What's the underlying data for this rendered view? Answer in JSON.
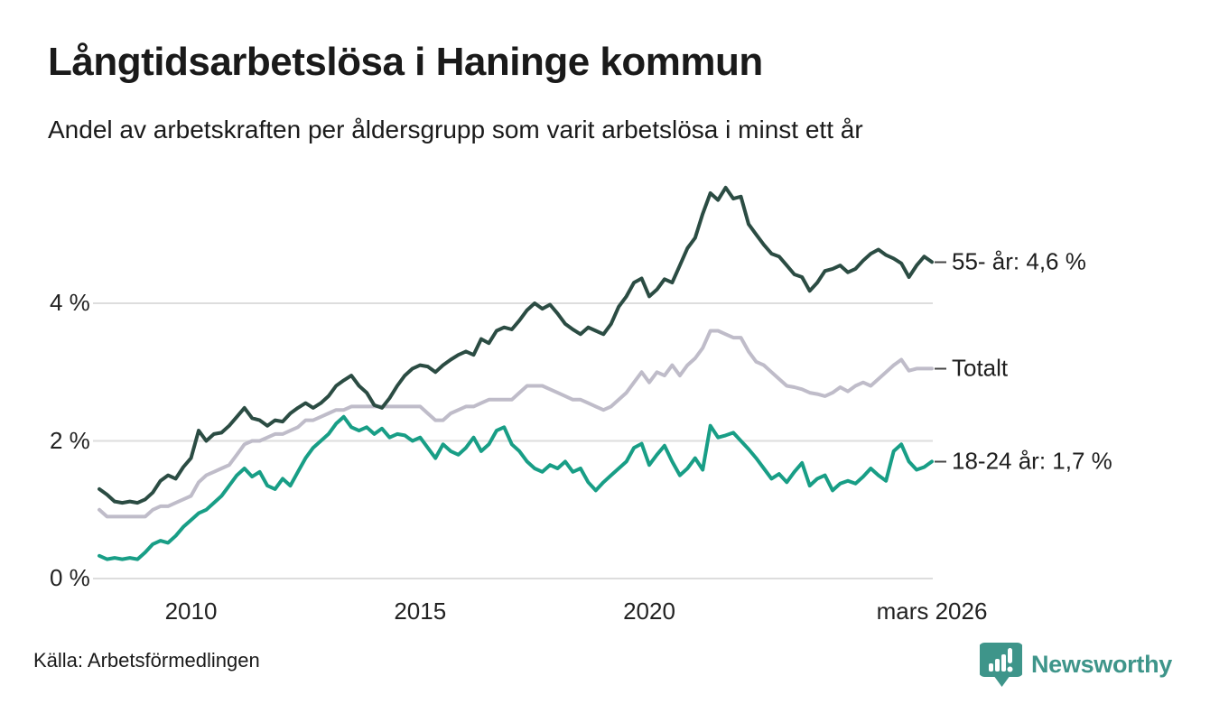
{
  "header": {
    "title": "Långtidsarbetslösa i Haninge kommun",
    "subtitle": "Andel av arbetskraften per åldersgrupp som varit arbetslösa i minst ett år"
  },
  "footer": {
    "source": "Källa: Arbetsförmedlingen",
    "brand_name": "Newsworthy",
    "brand_color": "#3e958a",
    "brand_icon": "bar-chart-speech-bubble-icon"
  },
  "colors": {
    "grid": "#dddddd",
    "tick_text": "#222222",
    "label_dash": "#454545"
  },
  "chart_data": {
    "type": "line",
    "title": "Långtidsarbetslösa i Haninge kommun",
    "subtitle": "Andel av arbetskraften per åldersgrupp som varit arbetslösa i minst ett år",
    "unit": "%",
    "grid": "horizontal",
    "legend_position": "right-end-labels",
    "x_start_year": 2008.0,
    "x_step_months": 2,
    "x_end": "mars 2026",
    "ylim": [
      0,
      5.9
    ],
    "yticks": [
      {
        "value": 0,
        "label": "0 %"
      },
      {
        "value": 2,
        "label": "2 %"
      },
      {
        "value": 4,
        "label": "4 %"
      }
    ],
    "xticks": [
      {
        "value": 2010,
        "label": "2010"
      },
      {
        "value": 2015,
        "label": "2015"
      },
      {
        "value": 2020,
        "label": "2020"
      },
      {
        "value": 2026.167,
        "label": "mars 2026"
      }
    ],
    "series": [
      {
        "name": "Totalt",
        "end_label": "Totalt",
        "end_value": 3.05,
        "color": "#bfbcc9",
        "values": [
          1.0,
          0.9,
          0.9,
          0.9,
          0.9,
          0.9,
          0.9,
          1.0,
          1.05,
          1.05,
          1.1,
          1.15,
          1.2,
          1.4,
          1.5,
          1.55,
          1.6,
          1.65,
          1.8,
          1.95,
          2.0,
          2.0,
          2.05,
          2.1,
          2.1,
          2.15,
          2.2,
          2.3,
          2.3,
          2.35,
          2.4,
          2.45,
          2.45,
          2.5,
          2.5,
          2.5,
          2.5,
          2.5,
          2.5,
          2.5,
          2.5,
          2.5,
          2.5,
          2.4,
          2.3,
          2.3,
          2.4,
          2.45,
          2.5,
          2.5,
          2.55,
          2.6,
          2.6,
          2.6,
          2.6,
          2.7,
          2.8,
          2.8,
          2.8,
          2.75,
          2.7,
          2.65,
          2.6,
          2.6,
          2.55,
          2.5,
          2.45,
          2.5,
          2.6,
          2.7,
          2.85,
          3.0,
          2.85,
          3.0,
          2.95,
          3.1,
          2.95,
          3.1,
          3.2,
          3.35,
          3.6,
          3.6,
          3.55,
          3.5,
          3.5,
          3.3,
          3.15,
          3.1,
          3.0,
          2.9,
          2.8,
          2.78,
          2.75,
          2.7,
          2.68,
          2.65,
          2.7,
          2.78,
          2.72,
          2.8,
          2.85,
          2.8,
          2.9,
          3.0,
          3.1,
          3.18,
          3.02,
          3.05,
          3.05,
          3.05
        ]
      },
      {
        "name": "55- år",
        "end_label": "55- år: 4,6 %",
        "end_value": 4.6,
        "color": "#2b4c43",
        "values": [
          1.3,
          1.22,
          1.12,
          1.1,
          1.12,
          1.1,
          1.15,
          1.25,
          1.42,
          1.5,
          1.45,
          1.62,
          1.75,
          2.15,
          2.0,
          2.1,
          2.12,
          2.22,
          2.35,
          2.48,
          2.33,
          2.3,
          2.22,
          2.3,
          2.28,
          2.4,
          2.48,
          2.55,
          2.48,
          2.55,
          2.65,
          2.8,
          2.88,
          2.95,
          2.8,
          2.7,
          2.52,
          2.48,
          2.62,
          2.8,
          2.95,
          3.05,
          3.1,
          3.08,
          3.0,
          3.1,
          3.18,
          3.25,
          3.3,
          3.25,
          3.48,
          3.42,
          3.6,
          3.65,
          3.62,
          3.75,
          3.9,
          4.0,
          3.92,
          3.98,
          3.85,
          3.7,
          3.62,
          3.55,
          3.65,
          3.6,
          3.55,
          3.7,
          3.95,
          4.1,
          4.3,
          4.36,
          4.1,
          4.2,
          4.35,
          4.3,
          4.55,
          4.8,
          4.95,
          5.3,
          5.6,
          5.5,
          5.68,
          5.52,
          5.55,
          5.15,
          5.0,
          4.85,
          4.72,
          4.68,
          4.55,
          4.42,
          4.38,
          4.18,
          4.3,
          4.47,
          4.5,
          4.55,
          4.45,
          4.5,
          4.62,
          4.72,
          4.78,
          4.7,
          4.65,
          4.58,
          4.38,
          4.55,
          4.68,
          4.6
        ]
      },
      {
        "name": "18-24 år",
        "end_label": "18-24 år: 1,7 %",
        "end_value": 1.7,
        "color": "#189e86",
        "values": [
          0.33,
          0.28,
          0.3,
          0.28,
          0.3,
          0.28,
          0.38,
          0.5,
          0.55,
          0.52,
          0.62,
          0.75,
          0.85,
          0.95,
          1.0,
          1.1,
          1.2,
          1.35,
          1.5,
          1.6,
          1.48,
          1.55,
          1.35,
          1.3,
          1.45,
          1.35,
          1.55,
          1.75,
          1.9,
          2.0,
          2.1,
          2.25,
          2.35,
          2.2,
          2.15,
          2.2,
          2.1,
          2.18,
          2.05,
          2.1,
          2.08,
          2.0,
          2.05,
          1.9,
          1.75,
          1.95,
          1.85,
          1.8,
          1.9,
          2.05,
          1.85,
          1.95,
          2.15,
          2.2,
          1.95,
          1.85,
          1.7,
          1.6,
          1.55,
          1.65,
          1.6,
          1.7,
          1.55,
          1.6,
          1.4,
          1.28,
          1.4,
          1.5,
          1.6,
          1.7,
          1.9,
          1.96,
          1.65,
          1.8,
          1.93,
          1.7,
          1.5,
          1.6,
          1.75,
          1.58,
          2.22,
          2.05,
          2.08,
          2.12,
          2.0,
          1.88,
          1.75,
          1.6,
          1.45,
          1.52,
          1.4,
          1.55,
          1.68,
          1.35,
          1.45,
          1.5,
          1.28,
          1.38,
          1.42,
          1.38,
          1.48,
          1.6,
          1.5,
          1.42,
          1.85,
          1.95,
          1.7,
          1.58,
          1.62,
          1.7
        ]
      }
    ]
  }
}
